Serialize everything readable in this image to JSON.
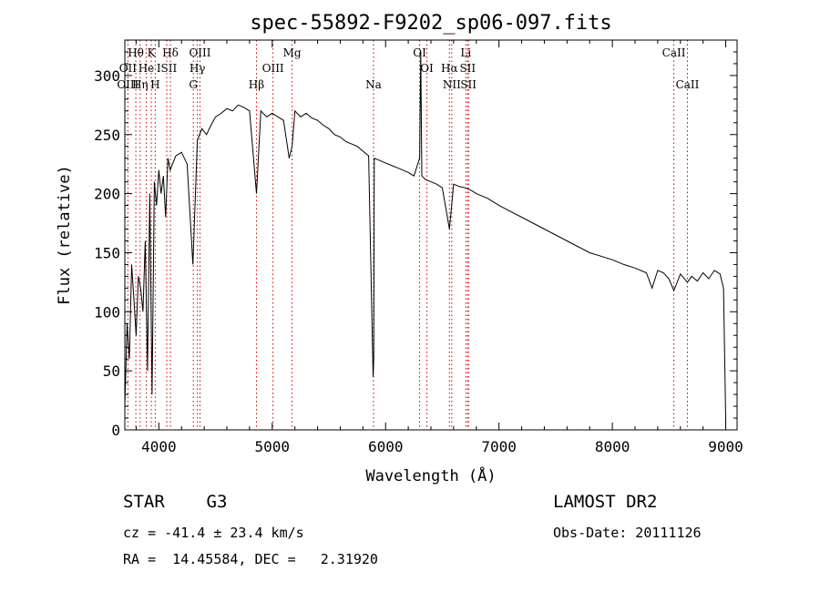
{
  "chart_data": {
    "type": "line",
    "title": "spec-55892-F9202_sp06-097.fits",
    "xlabel": "Wavelength (Å)",
    "ylabel": "Flux (relative)",
    "xlim": [
      3700,
      9100
    ],
    "ylim": [
      0,
      330
    ],
    "xticks": [
      4000,
      5000,
      6000,
      7000,
      8000,
      9000
    ],
    "yticks": [
      0,
      50,
      100,
      150,
      200,
      250,
      300
    ],
    "grid": false,
    "series": [
      {
        "x": [
          3700,
          3720,
          3740,
          3760,
          3780,
          3800,
          3820,
          3840,
          3860,
          3880,
          3900,
          3920,
          3940,
          3960,
          3980,
          4000,
          4020,
          4040,
          4060,
          4080,
          4100,
          4120,
          4150,
          4200,
          4250,
          4300,
          4340,
          4380,
          4420,
          4460,
          4500,
          4550,
          4600,
          4650,
          4700,
          4750,
          4800,
          4861,
          4900,
          4950,
          5000,
          5050,
          5100,
          5150,
          5175,
          5200,
          5250,
          5300,
          5350,
          5400,
          5450,
          5500,
          5550,
          5600,
          5650,
          5700,
          5750,
          5800,
          5850,
          5890,
          5895,
          5900,
          5950,
          6000,
          6050,
          6100,
          6150,
          6200,
          6250,
          6300,
          6310,
          6320,
          6350,
          6400,
          6450,
          6500,
          6563,
          6600,
          6650,
          6700,
          6750,
          6800,
          6900,
          7000,
          7100,
          7200,
          7300,
          7400,
          7500,
          7600,
          7700,
          7800,
          7900,
          8000,
          8100,
          8200,
          8300,
          8350,
          8400,
          8450,
          8498,
          8542,
          8600,
          8662,
          8700,
          8750,
          8800,
          8850,
          8900,
          8950,
          8980,
          9000
        ],
        "values": [
          20,
          90,
          60,
          140,
          110,
          80,
          130,
          120,
          100,
          160,
          50,
          200,
          30,
          210,
          190,
          220,
          200,
          215,
          180,
          230,
          220,
          225,
          232,
          235,
          225,
          140,
          245,
          255,
          250,
          258,
          265,
          268,
          272,
          270,
          275,
          273,
          270,
          200,
          270,
          265,
          268,
          265,
          262,
          230,
          240,
          270,
          265,
          268,
          264,
          262,
          258,
          255,
          250,
          248,
          244,
          242,
          240,
          236,
          232,
          45,
          60,
          230,
          228,
          226,
          224,
          222,
          220,
          218,
          215,
          230,
          320,
          215,
          212,
          210,
          208,
          205,
          170,
          208,
          206,
          205,
          203,
          200,
          196,
          190,
          185,
          180,
          175,
          170,
          165,
          160,
          155,
          150,
          147,
          144,
          140,
          137,
          133,
          120,
          135,
          133,
          128,
          118,
          132,
          125,
          130,
          126,
          133,
          128,
          135,
          132,
          120,
          5
        ]
      }
    ],
    "spectral_lines": [
      {
        "label": "Hθ",
        "x": 3797,
        "row": 1
      },
      {
        "label": "K",
        "x": 3934,
        "row": 1
      },
      {
        "label": "Hδ",
        "x": 4102,
        "row": 1
      },
      {
        "label": "OIII",
        "x": 4363,
        "row": 1
      },
      {
        "label": "Mg",
        "x": 5175,
        "row": 1
      },
      {
        "label": "OI",
        "x": 6300,
        "row": 1
      },
      {
        "label": "Li",
        "x": 6708,
        "row": 1
      },
      {
        "label": "CaII",
        "x": 8542,
        "row": 1
      },
      {
        "label": "OII",
        "x": 3727,
        "row": 2
      },
      {
        "label": "He",
        "x": 3889,
        "row": 2
      },
      {
        "label": "ISII",
        "x": 4070,
        "row": 2
      },
      {
        "label": "Hγ",
        "x": 4340,
        "row": 2
      },
      {
        "label": "OIII",
        "x": 5007,
        "row": 2
      },
      {
        "label": "OI",
        "x": 6364,
        "row": 2
      },
      {
        "label": "Hα",
        "x": 6563,
        "row": 2
      },
      {
        "label": "SII",
        "x": 6724,
        "row": 2
      },
      {
        "label": "OIII",
        "x": 3727,
        "row": 3
      },
      {
        "label": "Hη",
        "x": 3835,
        "row": 3
      },
      {
        "label": "H",
        "x": 3968,
        "row": 3
      },
      {
        "label": "G",
        "x": 4304,
        "row": 3
      },
      {
        "label": "Hβ",
        "x": 4861,
        "row": 3
      },
      {
        "label": "Na",
        "x": 5893,
        "row": 3
      },
      {
        "label": "NII",
        "x": 6584,
        "row": 3
      },
      {
        "label": "SII",
        "x": 6731,
        "row": 3
      },
      {
        "label": "CaII",
        "x": 8662,
        "row": 3
      }
    ],
    "line_color": "#000000",
    "marker_color": "#cc0000"
  },
  "info": {
    "class": "STAR    G3",
    "survey": "LAMOST DR2",
    "cz": "cz = -41.4 ± 23.4 km/s",
    "obs_date": "Obs-Date: 20111126",
    "coords": "RA =  14.45584, DEC =   2.31920"
  }
}
